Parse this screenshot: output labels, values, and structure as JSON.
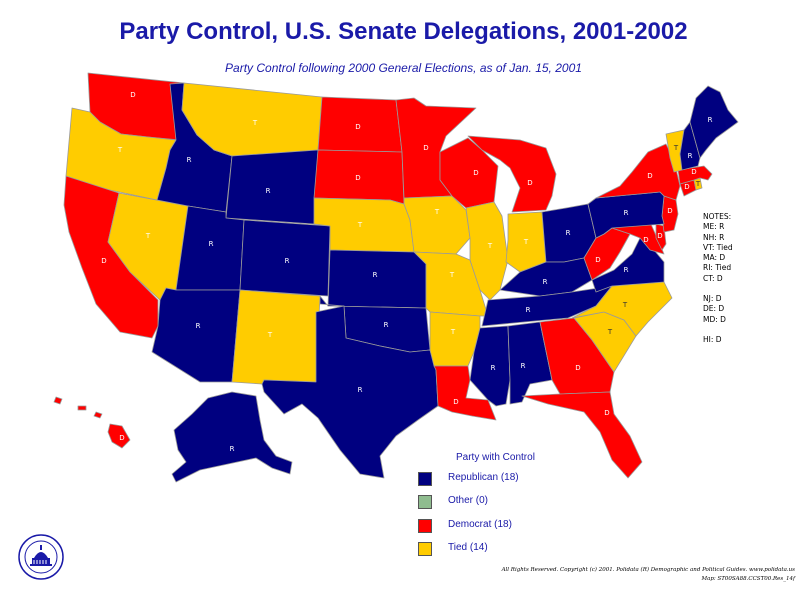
{
  "title": "Party Control, U.S. Senate Delegations, 2001-2002",
  "subtitle": "Party Control following 2000 General Elections, as of Jan. 15, 2001",
  "colors": {
    "R": "#000080",
    "D": "#ff0000",
    "T": "#ffcc00",
    "O": "#8fbc8f",
    "border": "#9a9a9a"
  },
  "states": [
    {
      "id": "WA",
      "label": "D",
      "party": "D"
    },
    {
      "id": "OR",
      "label": "T",
      "party": "T"
    },
    {
      "id": "CA",
      "label": "D",
      "party": "D"
    },
    {
      "id": "NV",
      "label": "T",
      "party": "T"
    },
    {
      "id": "ID",
      "label": "R",
      "party": "R"
    },
    {
      "id": "MT",
      "label": "T",
      "party": "T"
    },
    {
      "id": "WY",
      "label": "R",
      "party": "R"
    },
    {
      "id": "UT",
      "label": "R",
      "party": "R"
    },
    {
      "id": "AZ",
      "label": "R",
      "party": "R"
    },
    {
      "id": "CO",
      "label": "R",
      "party": "R"
    },
    {
      "id": "NM",
      "label": "T",
      "party": "T"
    },
    {
      "id": "ND",
      "label": "D",
      "party": "D"
    },
    {
      "id": "SD",
      "label": "D",
      "party": "D"
    },
    {
      "id": "NE",
      "label": "T",
      "party": "T"
    },
    {
      "id": "KS",
      "label": "R",
      "party": "R"
    },
    {
      "id": "OK",
      "label": "R",
      "party": "R"
    },
    {
      "id": "TX",
      "label": "R",
      "party": "R"
    },
    {
      "id": "MN",
      "label": "D",
      "party": "D"
    },
    {
      "id": "IA",
      "label": "T",
      "party": "T"
    },
    {
      "id": "MO",
      "label": "T",
      "party": "T"
    },
    {
      "id": "AR",
      "label": "T",
      "party": "T"
    },
    {
      "id": "LA",
      "label": "D",
      "party": "D"
    },
    {
      "id": "WI",
      "label": "D",
      "party": "D"
    },
    {
      "id": "IL",
      "label": "T",
      "party": "T"
    },
    {
      "id": "MI",
      "label": "D",
      "party": "D"
    },
    {
      "id": "IN",
      "label": "T",
      "party": "T"
    },
    {
      "id": "OH",
      "label": "R",
      "party": "R"
    },
    {
      "id": "KY",
      "label": "R",
      "party": "R"
    },
    {
      "id": "TN",
      "label": "R",
      "party": "R"
    },
    {
      "id": "MS",
      "label": "R",
      "party": "R"
    },
    {
      "id": "AL",
      "label": "R",
      "party": "R"
    },
    {
      "id": "GA",
      "label": "D",
      "party": "D"
    },
    {
      "id": "FL",
      "label": "D",
      "party": "D"
    },
    {
      "id": "SC",
      "label": "T",
      "party": "T"
    },
    {
      "id": "NC",
      "label": "T",
      "party": "T"
    },
    {
      "id": "VA",
      "label": "R",
      "party": "R"
    },
    {
      "id": "WV",
      "label": "D",
      "party": "D"
    },
    {
      "id": "MD",
      "label": "D",
      "party": "D"
    },
    {
      "id": "DE",
      "label": "D",
      "party": "D"
    },
    {
      "id": "NJ",
      "label": "D",
      "party": "D"
    },
    {
      "id": "PA",
      "label": "R",
      "party": "R"
    },
    {
      "id": "NY",
      "label": "D",
      "party": "D"
    },
    {
      "id": "CT",
      "label": "D",
      "party": "D"
    },
    {
      "id": "RI",
      "label": "T",
      "party": "T"
    },
    {
      "id": "MA",
      "label": "D",
      "party": "D"
    },
    {
      "id": "VT",
      "label": "T",
      "party": "T"
    },
    {
      "id": "NH",
      "label": "R",
      "party": "R"
    },
    {
      "id": "ME",
      "label": "R",
      "party": "R"
    },
    {
      "id": "AK",
      "label": "R",
      "party": "R"
    },
    {
      "id": "HI",
      "label": "D",
      "party": "D"
    }
  ],
  "notes": [
    "NOTES:",
    "ME: R",
    "NH: R",
    "VT: Tied",
    "MA: D",
    "RI: Tied",
    "CT: D",
    "NJ: D",
    "DE: D",
    "MD: D",
    "HI: D"
  ],
  "legend": {
    "title": "Party with Control",
    "items": [
      {
        "label": "Republican (18)",
        "color": "#000080"
      },
      {
        "label": "Other (0)",
        "color": "#8fbc8f"
      },
      {
        "label": "Democrat (18)",
        "color": "#ff0000"
      },
      {
        "label": "Tied (14)",
        "color": "#ffcc00"
      }
    ]
  },
  "seal_text": "POLIDATA",
  "credits": {
    "line1": "All Rights Reserved. Copyright (c) 2001. Polidata (R) Demographic and Political Guides. www.polidata.us",
    "line2": "Map: ST00SA88.CCST00.Res_14f"
  }
}
